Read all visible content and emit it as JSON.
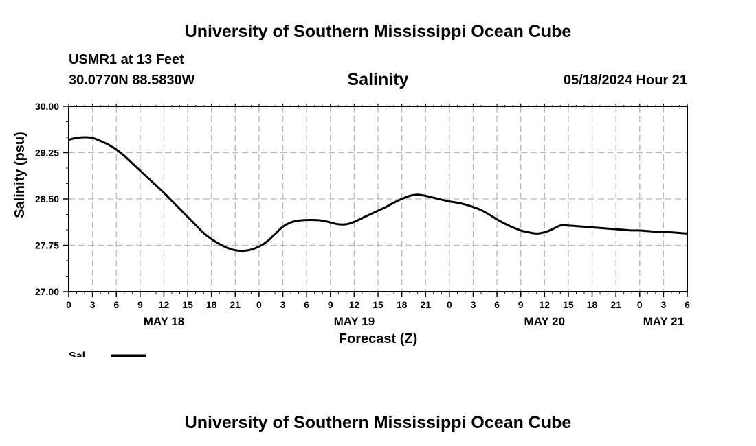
{
  "header": {
    "title": "University of Southern Mississippi Ocean Cube",
    "station": "USMR1 at 13 Feet",
    "coords": "30.0770N  88.5830W",
    "variable": "Salinity",
    "datetime": "05/18/2024 Hour 21"
  },
  "footer": {
    "title": "University of Southern Mississippi Ocean Cube"
  },
  "chart_data": {
    "type": "line",
    "title": "Salinity",
    "xlabel": "Forecast (Z)",
    "ylabel": "Salinity (psu)",
    "ylim": [
      27.0,
      30.0
    ],
    "xlim": [
      0,
      78
    ],
    "x_unit": "hours since 2024-05-18 00Z",
    "grid": true,
    "yticks": [
      "27.00",
      "27.75",
      "28.50",
      "29.25",
      "30.00"
    ],
    "xtick_labels": [
      "0",
      "3",
      "6",
      "9",
      "12",
      "15",
      "18",
      "21",
      "0",
      "3",
      "6",
      "9",
      "12",
      "15",
      "18",
      "21",
      "0",
      "3",
      "6",
      "9",
      "12",
      "15",
      "18",
      "21",
      "0",
      "3",
      "6"
    ],
    "day_labels": [
      {
        "label": "MAY 18",
        "x": 12
      },
      {
        "label": "MAY 19",
        "x": 36
      },
      {
        "label": "MAY 20",
        "x": 60
      },
      {
        "label": "MAY 21",
        "x": 75
      }
    ],
    "legend": {
      "label": "Sal",
      "color": "#000000",
      "placement": "bottom-left"
    },
    "series": [
      {
        "name": "Sal",
        "color": "#000000",
        "x": [
          0,
          1,
          2,
          3,
          4,
          5,
          6,
          7,
          8,
          9,
          10,
          11,
          12,
          13,
          14,
          15,
          16,
          17,
          18,
          19,
          20,
          21,
          22,
          23,
          24,
          25,
          26,
          27,
          28,
          29,
          30,
          31,
          32,
          33,
          34,
          35,
          36,
          37,
          38,
          39,
          40,
          41,
          42,
          43,
          44,
          45,
          46,
          47,
          48,
          49,
          50,
          51,
          52,
          53,
          54,
          55,
          56,
          57,
          58,
          59,
          60,
          61,
          62,
          63,
          64,
          65,
          66,
          67,
          68,
          69,
          70,
          71,
          72,
          73,
          74,
          75,
          76,
          77,
          78
        ],
        "values": [
          29.46,
          29.49,
          29.5,
          29.49,
          29.44,
          29.38,
          29.3,
          29.2,
          29.08,
          28.96,
          28.84,
          28.72,
          28.6,
          28.47,
          28.34,
          28.21,
          28.08,
          27.95,
          27.85,
          27.77,
          27.71,
          27.67,
          27.66,
          27.68,
          27.73,
          27.81,
          27.93,
          28.05,
          28.12,
          28.15,
          28.16,
          28.16,
          28.15,
          28.12,
          28.09,
          28.09,
          28.13,
          28.19,
          28.25,
          28.31,
          28.37,
          28.44,
          28.5,
          28.55,
          28.57,
          28.55,
          28.52,
          28.49,
          28.46,
          28.44,
          28.41,
          28.37,
          28.32,
          28.25,
          28.17,
          28.1,
          28.04,
          27.99,
          27.96,
          27.94,
          27.96,
          28.01,
          28.07,
          28.07,
          28.06,
          28.05,
          28.04,
          28.03,
          28.02,
          28.01,
          28.0,
          27.99,
          27.99,
          27.98,
          27.97,
          27.97,
          27.96,
          27.95,
          27.94
        ]
      }
    ]
  }
}
